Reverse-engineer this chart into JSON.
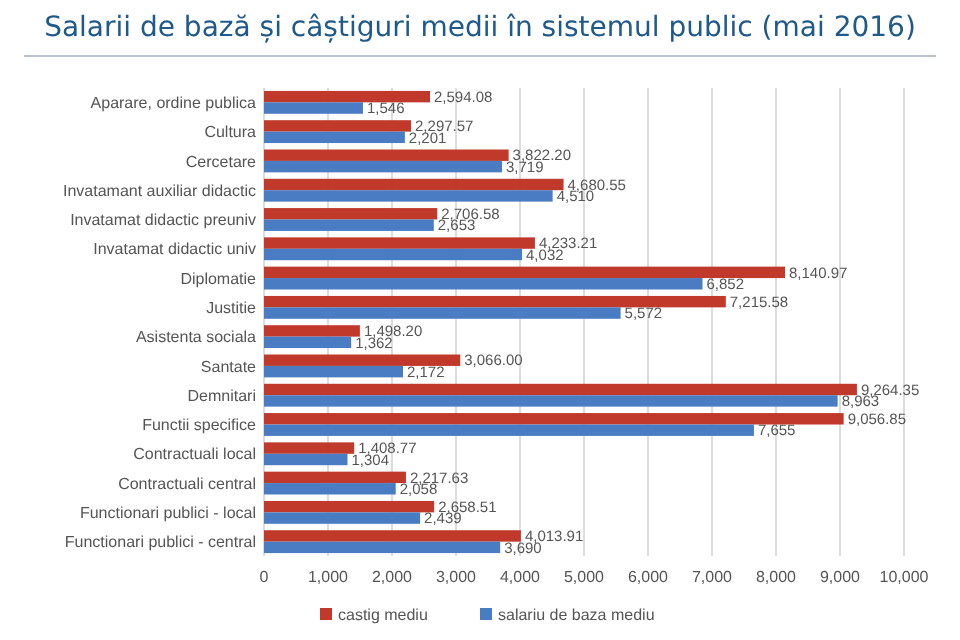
{
  "chart_data": {
    "type": "bar",
    "orientation": "horizontal",
    "title": "Salarii de bază și câștiguri medii în sistemul public (mai 2016)",
    "categories": [
      "Aparare, ordine publica",
      "Cultura",
      "Cercetare",
      "Invatamant auxiliar didactic",
      "Invatamat didactic preuniv",
      "Invatamat didactic univ",
      "Diplomatie",
      "Justitie",
      "Asistenta sociala",
      "Santate",
      "Demnitari",
      "Functii specifice",
      "Contractuali local",
      "Contractuali central",
      "Functionari publici - local",
      "Functionari publici - central"
    ],
    "series": [
      {
        "name": "castig mediu",
        "color": "#c0392b",
        "values": [
          2594.08,
          2297.57,
          3822.2,
          4680.55,
          2706.58,
          4233.21,
          8140.97,
          7215.58,
          1498.2,
          3066.0,
          9264.35,
          9056.85,
          1408.77,
          2217.63,
          2658.51,
          4013.91
        ],
        "value_labels": [
          "2,594.08",
          "2,297.57",
          "3,822.20",
          "4,680.55",
          "2,706.58",
          "4,233.21",
          "8,140.97",
          "7,215.58",
          "1,498.20",
          "3,066.00",
          "9,264.35",
          "9,056.85",
          "1,408.77",
          "2,217.63",
          "2,658.51",
          "4,013.91"
        ]
      },
      {
        "name": "salariu de baza mediu",
        "color": "#4a7cc4",
        "values": [
          1546,
          2201,
          3719,
          4510,
          2653,
          4032,
          6852,
          5572,
          1362,
          2172,
          8963,
          7655,
          1304,
          2058,
          2439,
          3690
        ],
        "value_labels": [
          "1,546",
          "2,201",
          "3,719",
          "4,510",
          "2,653",
          "4,032",
          "6,852",
          "5,572",
          "1,362",
          "2,172",
          "8,963",
          "7,655",
          "1,304",
          "2,058",
          "2,439",
          "3,690"
        ]
      }
    ],
    "xlim": [
      0,
      10000
    ],
    "xticks": [
      {
        "value": 0,
        "label": "0"
      },
      {
        "value": 1000,
        "label": "1,000"
      },
      {
        "value": 2000,
        "label": "2,000"
      },
      {
        "value": 3000,
        "label": "3,000"
      },
      {
        "value": 4000,
        "label": "4,000"
      },
      {
        "value": 5000,
        "label": "5,000"
      },
      {
        "value": 6000,
        "label": "6,000"
      },
      {
        "value": 7000,
        "label": "7,000"
      },
      {
        "value": 8000,
        "label": "8,000"
      },
      {
        "value": 9000,
        "label": "9,000"
      },
      {
        "value": 10000,
        "label": "10,000"
      }
    ],
    "grid": "x",
    "legend": "bottom"
  }
}
